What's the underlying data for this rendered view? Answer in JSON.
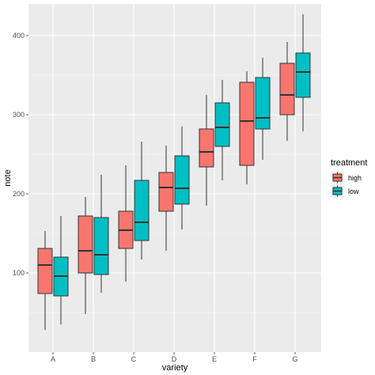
{
  "chart_data": {
    "type": "boxplot",
    "xlabel": "variety",
    "ylabel": "note",
    "categories": [
      "A",
      "B",
      "C",
      "D",
      "E",
      "F",
      "G"
    ],
    "ylim": [
      0,
      440
    ],
    "yticks": [
      100,
      200,
      300,
      400
    ],
    "grid": true,
    "legend_position": "right",
    "legend": {
      "title": "treatment",
      "entries": [
        {
          "label": "high",
          "color": "#F8766D"
        },
        {
          "label": "low",
          "color": "#00BFC4"
        }
      ]
    },
    "series": [
      {
        "name": "high",
        "color": "#F8766D",
        "boxes": [
          {
            "category": "A",
            "min": 28,
            "q1": 74,
            "median": 110,
            "q3": 131,
            "max": 153
          },
          {
            "category": "B",
            "min": 48,
            "q1": 100,
            "median": 128,
            "q3": 172,
            "max": 196
          },
          {
            "category": "C",
            "min": 89,
            "q1": 131,
            "median": 154,
            "q3": 178,
            "max": 236
          },
          {
            "category": "D",
            "min": 128,
            "q1": 178,
            "median": 208,
            "q3": 227,
            "max": 261
          },
          {
            "category": "E",
            "min": 185,
            "q1": 234,
            "median": 253,
            "q3": 282,
            "max": 325
          },
          {
            "category": "F",
            "min": 212,
            "q1": 236,
            "median": 292,
            "q3": 341,
            "max": 355
          },
          {
            "category": "G",
            "min": 267,
            "q1": 300,
            "median": 325,
            "q3": 365,
            "max": 392
          }
        ]
      },
      {
        "name": "low",
        "color": "#00BFC4",
        "boxes": [
          {
            "category": "A",
            "min": 35,
            "q1": 71,
            "median": 96,
            "q3": 120,
            "max": 172
          },
          {
            "category": "B",
            "min": 75,
            "q1": 98,
            "median": 123,
            "q3": 170,
            "max": 224
          },
          {
            "category": "C",
            "min": 117,
            "q1": 141,
            "median": 164,
            "q3": 217,
            "max": 266
          },
          {
            "category": "D",
            "min": 155,
            "q1": 187,
            "median": 207,
            "q3": 248,
            "max": 285
          },
          {
            "category": "E",
            "min": 217,
            "q1": 260,
            "median": 284,
            "q3": 315,
            "max": 344
          },
          {
            "category": "F",
            "min": 243,
            "q1": 282,
            "median": 296,
            "q3": 347,
            "max": 372
          },
          {
            "category": "G",
            "min": 279,
            "q1": 322,
            "median": 354,
            "q3": 378,
            "max": 427
          }
        ]
      }
    ]
  }
}
